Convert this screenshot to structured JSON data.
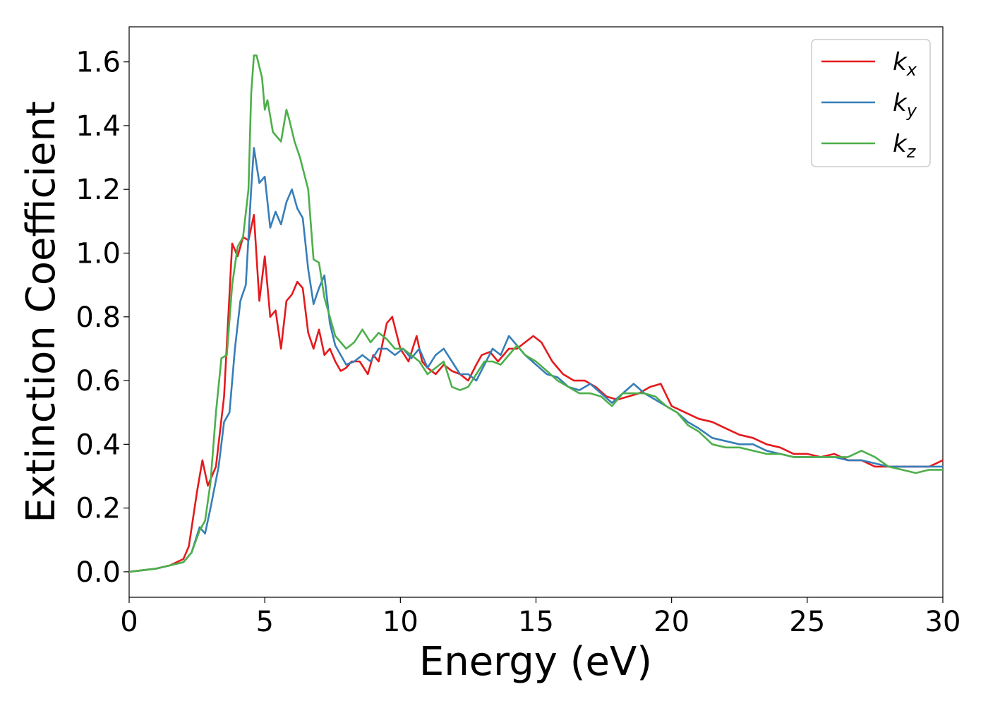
{
  "chart_data": {
    "type": "line",
    "title": "",
    "xlabel": "Energy (eV)",
    "ylabel": "Extinction Coefficient",
    "xlim": [
      0,
      30
    ],
    "ylim": [
      -0.08,
      1.71
    ],
    "xticks": [
      0,
      5,
      10,
      15,
      20,
      25,
      30
    ],
    "yticks": [
      0.0,
      0.2,
      0.4,
      0.6,
      0.8,
      1.0,
      1.2,
      1.4,
      1.6
    ],
    "grid": false,
    "legend": "top-right",
    "series": [
      {
        "name": "k_x",
        "color": "#e41a1c",
        "x": [
          0,
          1,
          1.5,
          2,
          2.2,
          2.5,
          2.7,
          2.9,
          3.2,
          3.5,
          3.8,
          4.0,
          4.2,
          4.4,
          4.6,
          4.8,
          5.0,
          5.2,
          5.4,
          5.6,
          5.8,
          6.0,
          6.2,
          6.4,
          6.6,
          6.8,
          7.0,
          7.2,
          7.4,
          7.6,
          7.8,
          8.0,
          8.2,
          8.5,
          8.8,
          9.0,
          9.2,
          9.5,
          9.7,
          10.0,
          10.3,
          10.6,
          10.8,
          11.0,
          11.3,
          11.6,
          11.9,
          12.2,
          12.5,
          12.8,
          13.0,
          13.3,
          13.6,
          14.0,
          14.3,
          14.6,
          14.9,
          15.2,
          15.6,
          16.0,
          16.4,
          16.8,
          17.2,
          17.6,
          18.0,
          18.4,
          18.8,
          19.2,
          19.6,
          20.0,
          20.5,
          21.0,
          21.5,
          22.0,
          22.5,
          23.0,
          23.5,
          24.0,
          24.5,
          25.0,
          25.5,
          26.0,
          26.5,
          27.0,
          27.5,
          28.0,
          28.5,
          29.0,
          29.5,
          30.0
        ],
        "values": [
          0.0,
          0.01,
          0.02,
          0.04,
          0.08,
          0.25,
          0.35,
          0.27,
          0.33,
          0.55,
          1.03,
          0.99,
          1.05,
          1.04,
          1.12,
          0.85,
          0.99,
          0.8,
          0.82,
          0.7,
          0.85,
          0.87,
          0.91,
          0.89,
          0.75,
          0.7,
          0.76,
          0.68,
          0.7,
          0.66,
          0.63,
          0.64,
          0.66,
          0.66,
          0.62,
          0.68,
          0.66,
          0.78,
          0.8,
          0.7,
          0.66,
          0.74,
          0.66,
          0.64,
          0.62,
          0.65,
          0.63,
          0.62,
          0.6,
          0.65,
          0.68,
          0.69,
          0.66,
          0.7,
          0.7,
          0.72,
          0.74,
          0.72,
          0.66,
          0.62,
          0.6,
          0.6,
          0.58,
          0.55,
          0.54,
          0.55,
          0.56,
          0.58,
          0.59,
          0.52,
          0.5,
          0.48,
          0.47,
          0.45,
          0.43,
          0.42,
          0.4,
          0.39,
          0.37,
          0.37,
          0.36,
          0.37,
          0.35,
          0.35,
          0.33,
          0.33,
          0.33,
          0.33,
          0.33,
          0.35
        ]
      },
      {
        "name": "k_y",
        "color": "#377eb8",
        "x": [
          0,
          1,
          1.5,
          2,
          2.3,
          2.6,
          2.8,
          3.0,
          3.3,
          3.5,
          3.7,
          3.9,
          4.1,
          4.3,
          4.5,
          4.6,
          4.8,
          5.0,
          5.2,
          5.4,
          5.6,
          5.8,
          6.0,
          6.2,
          6.4,
          6.6,
          6.8,
          7.0,
          7.2,
          7.4,
          7.6,
          7.8,
          8.0,
          8.3,
          8.6,
          8.9,
          9.2,
          9.5,
          9.8,
          10.1,
          10.4,
          10.7,
          11.0,
          11.3,
          11.6,
          11.9,
          12.2,
          12.5,
          12.8,
          13.1,
          13.4,
          13.7,
          14.0,
          14.3,
          14.6,
          15.0,
          15.4,
          15.8,
          16.2,
          16.6,
          17.0,
          17.4,
          17.8,
          18.2,
          18.6,
          19.0,
          19.4,
          19.8,
          20.2,
          20.6,
          21.0,
          21.5,
          22.0,
          22.5,
          23.0,
          23.5,
          24.0,
          24.5,
          25.0,
          25.5,
          26.0,
          26.5,
          27.0,
          27.5,
          28.0,
          28.5,
          29.0,
          29.5,
          30.0
        ],
        "values": [
          0.0,
          0.01,
          0.02,
          0.03,
          0.06,
          0.14,
          0.12,
          0.2,
          0.33,
          0.47,
          0.5,
          0.7,
          0.85,
          0.9,
          1.2,
          1.33,
          1.22,
          1.24,
          1.08,
          1.13,
          1.09,
          1.16,
          1.2,
          1.14,
          1.11,
          0.95,
          0.84,
          0.89,
          0.93,
          0.78,
          0.71,
          0.68,
          0.65,
          0.66,
          0.68,
          0.66,
          0.7,
          0.7,
          0.68,
          0.7,
          0.67,
          0.7,
          0.64,
          0.68,
          0.7,
          0.66,
          0.62,
          0.62,
          0.6,
          0.65,
          0.7,
          0.68,
          0.74,
          0.71,
          0.68,
          0.65,
          0.62,
          0.61,
          0.58,
          0.57,
          0.59,
          0.56,
          0.53,
          0.56,
          0.59,
          0.56,
          0.54,
          0.52,
          0.5,
          0.47,
          0.45,
          0.42,
          0.41,
          0.4,
          0.4,
          0.38,
          0.37,
          0.36,
          0.36,
          0.36,
          0.36,
          0.35,
          0.35,
          0.34,
          0.33,
          0.33,
          0.33,
          0.33,
          0.33
        ]
      },
      {
        "name": "k_z",
        "color": "#4daf4a",
        "x": [
          0,
          1,
          1.5,
          2,
          2.3,
          2.6,
          2.8,
          3.0,
          3.2,
          3.4,
          3.6,
          3.8,
          4.0,
          4.2,
          4.4,
          4.5,
          4.6,
          4.7,
          4.9,
          5.0,
          5.1,
          5.3,
          5.6,
          5.8,
          5.9,
          6.1,
          6.3,
          6.6,
          6.8,
          7.0,
          7.2,
          7.4,
          7.6,
          7.8,
          8.0,
          8.3,
          8.6,
          8.9,
          9.2,
          9.5,
          9.8,
          10.1,
          10.4,
          10.7,
          11.0,
          11.3,
          11.6,
          11.9,
          12.2,
          12.5,
          12.8,
          13.1,
          13.4,
          13.7,
          14.0,
          14.3,
          14.6,
          15.0,
          15.4,
          15.8,
          16.2,
          16.6,
          17.0,
          17.4,
          17.8,
          18.2,
          18.6,
          19.0,
          19.4,
          19.8,
          20.2,
          20.6,
          21.0,
          21.5,
          22.0,
          22.5,
          23.0,
          23.5,
          24.0,
          24.5,
          25.0,
          25.5,
          26.0,
          26.5,
          27.0,
          27.5,
          28.0,
          28.5,
          29.0,
          29.5,
          30.0
        ],
        "values": [
          0.0,
          0.01,
          0.02,
          0.03,
          0.06,
          0.13,
          0.16,
          0.28,
          0.5,
          0.67,
          0.68,
          0.9,
          1.02,
          1.05,
          1.2,
          1.5,
          1.62,
          1.62,
          1.55,
          1.45,
          1.48,
          1.38,
          1.35,
          1.45,
          1.42,
          1.35,
          1.3,
          1.2,
          0.98,
          0.97,
          0.86,
          0.8,
          0.74,
          0.72,
          0.7,
          0.72,
          0.76,
          0.72,
          0.75,
          0.73,
          0.7,
          0.7,
          0.68,
          0.66,
          0.62,
          0.64,
          0.66,
          0.58,
          0.57,
          0.58,
          0.62,
          0.66,
          0.66,
          0.65,
          0.68,
          0.71,
          0.68,
          0.66,
          0.63,
          0.6,
          0.58,
          0.56,
          0.56,
          0.55,
          0.52,
          0.56,
          0.56,
          0.56,
          0.55,
          0.52,
          0.5,
          0.46,
          0.44,
          0.4,
          0.39,
          0.39,
          0.38,
          0.37,
          0.37,
          0.36,
          0.36,
          0.36,
          0.36,
          0.36,
          0.38,
          0.36,
          0.33,
          0.32,
          0.31,
          0.32,
          0.32
        ]
      }
    ]
  }
}
